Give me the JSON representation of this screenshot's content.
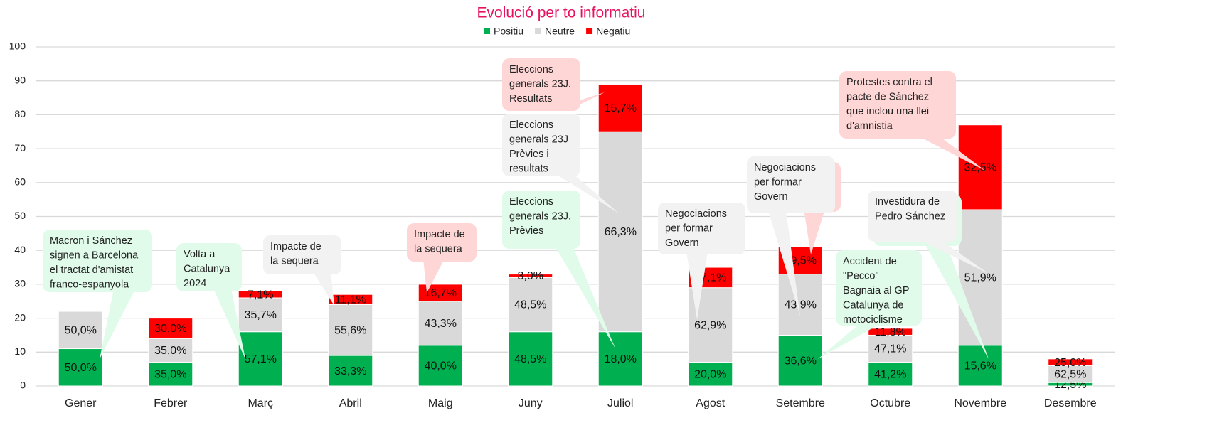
{
  "chart_data": {
    "type": "stacked_bar",
    "title": "Evolució per to informatiu",
    "categories": [
      "Gener",
      "Febrer",
      "Març",
      "Abril",
      "Maig",
      "Juny",
      "Juliol",
      "Agost",
      "Setembre",
      "Octubre",
      "Novembre",
      "Desembre"
    ],
    "series": [
      {
        "name": "Positiu",
        "color": "#00b050",
        "values": [
          11,
          7,
          16,
          9,
          12,
          16,
          16,
          7,
          15,
          7,
          12,
          1
        ],
        "labels": [
          "50,0%",
          "35,0%",
          "57,1%",
          "33,3%",
          "40,0%",
          "48,5%",
          "18,0%",
          "20,0%",
          "36,6%",
          "41,2%",
          "15,6%",
          "12,5%"
        ]
      },
      {
        "name": "Neutre",
        "color": "#d9d9d9",
        "values": [
          11,
          7,
          10,
          15,
          13,
          16,
          59,
          22,
          18,
          8,
          40,
          5
        ],
        "labels": [
          "50,0%",
          "35,0%",
          "35,7%",
          "55,6%",
          "43,3%",
          "48,5%",
          "66,3%",
          "62,9%",
          "43,9%",
          "47,1%",
          "51,9%",
          "62,5%"
        ]
      },
      {
        "name": "Negatiu",
        "color": "#ff0000",
        "values": [
          0,
          6,
          2,
          3,
          5,
          1,
          14,
          6,
          8,
          2,
          25,
          2
        ],
        "labels": [
          null,
          "30,0%",
          "7,1%",
          "11,1%",
          "16,7%",
          "3,0%",
          "15,7%",
          "17,1%",
          "19,5%",
          "11,8%",
          "32,5%",
          "25,0%"
        ]
      }
    ],
    "ylim": [
      0,
      100
    ],
    "yticks": [
      0,
      10,
      20,
      30,
      40,
      50,
      60,
      70,
      80,
      90,
      100
    ],
    "grid": true,
    "legend": "top",
    "annotations": [
      {
        "lines": [
          "Macron i Sánchez",
          "signen a Barcelona",
          "el tractat d'amistat",
          "franco-espanyola"
        ],
        "color": "#e0fbe9"
      },
      {
        "lines": [
          "Volta a",
          "Catalunya",
          "2024"
        ],
        "color": "#e0fbe9"
      },
      {
        "lines": [
          "Impacte de",
          "la sequera"
        ],
        "color": "#f2f2f2"
      },
      {
        "lines": [
          "Impacte de",
          "la sequera"
        ],
        "color": "#ffd6d6"
      },
      {
        "lines": [
          "Eleccions",
          "generals 23J.",
          "Resultats"
        ],
        "color": "#ffd6d6"
      },
      {
        "lines": [
          "Eleccions",
          "generals 23J",
          "Prèvies i",
          "resultats"
        ],
        "color": "#f2f2f2"
      },
      {
        "lines": [
          "Eleccions",
          "generals 23J.",
          "Prèvies"
        ],
        "color": "#e0fbe9"
      },
      {
        "lines": [
          "Negociacions",
          "per formar",
          "Govern"
        ],
        "color": "#f2f2f2"
      },
      {
        "lines": [],
        "color": "#ffd6d6"
      },
      {
        "lines": [
          "Negociacions",
          "per formar",
          "Govern"
        ],
        "color": "#f2f2f2"
      },
      {
        "lines": [
          "Accident de",
          "\"Pecco\"",
          "Bagnaia al GP",
          "Catalunya de",
          "motociclisme"
        ],
        "color": "#e0fbe9"
      },
      {
        "lines": [
          "Protestes contra el",
          "pacte de Sánchez",
          "que inclou una llei",
          "d'amnistia"
        ],
        "color": "#ffd6d6"
      },
      {
        "lines": [],
        "color": "#e0fbe9"
      },
      {
        "lines": [
          "Investidura de",
          "Pedro Sánchez"
        ],
        "color": "#f2f2f2"
      }
    ]
  }
}
